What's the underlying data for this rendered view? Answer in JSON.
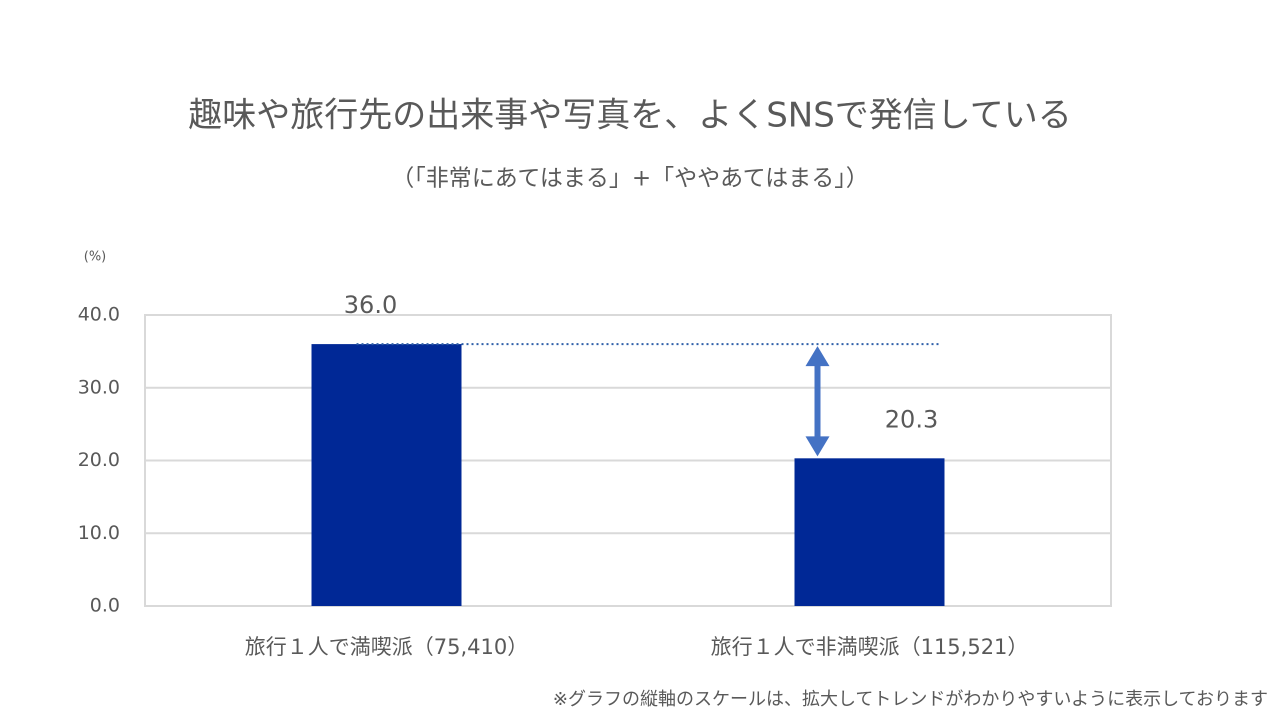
{
  "chart_data": {
    "type": "bar",
    "title": "趣味や旅行先の出来事や写真を、よくSNSで発信している",
    "subtitle": "（「非常にあてはまる」+「ややあてはまる」）",
    "y_axis_label": "(%)",
    "categories": [
      "旅行１人で満喫派（75,410）",
      "旅行１人で非満喫派（115,521）"
    ],
    "values": [
      36.0,
      20.3
    ],
    "value_labels": [
      "36.0",
      "20.3"
    ],
    "color": "#002896",
    "ylim": [
      0,
      40
    ],
    "yticks": [
      {
        "value": 0,
        "label": "0.0"
      },
      {
        "value": 10,
        "label": "10.0"
      },
      {
        "value": 20,
        "label": "20.0"
      },
      {
        "value": 30,
        "label": "30.0"
      },
      {
        "value": 40,
        "label": "40.0"
      }
    ],
    "grid": true,
    "note": "※グラフの縦軸のスケールは、拡大してトレンドがわかりやすいように表示しております"
  }
}
